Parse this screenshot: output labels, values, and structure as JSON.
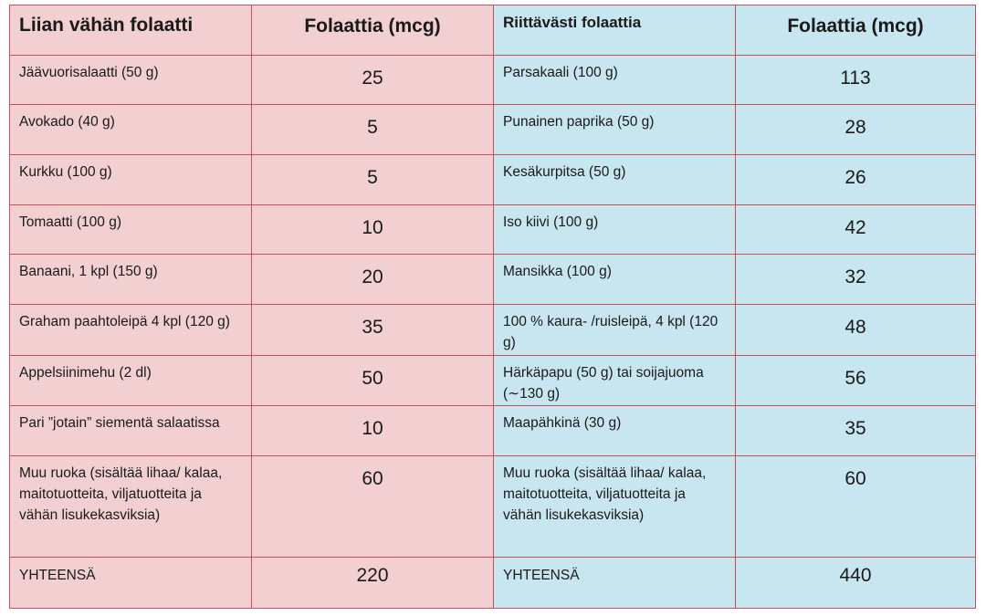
{
  "left": {
    "header": "Liian vähän folaatti",
    "value_header": "Folaattia (mcg)",
    "rows": [
      {
        "food": "Jäävuorisalaatti (50 g)",
        "value": "25"
      },
      {
        "food": "Avokado (40 g)",
        "value": "5"
      },
      {
        "food": "Kurkku (100 g)",
        "value": "5"
      },
      {
        "food": "Tomaatti (100 g)",
        "value": "10"
      },
      {
        "food": "Banaani, 1 kpl (150 g)",
        "value": "20"
      },
      {
        "food": "Graham paahtoleipä 4 kpl (120 g)",
        "value": "35"
      },
      {
        "food": "Appelsiinimehu (2 dl)",
        "value": "50"
      },
      {
        "food": "Pari ”jotain” siementä salaatissa",
        "value": "10"
      },
      {
        "food": "Muu ruoka (sisältää lihaa/ kalaa, maitotuotteita, viljatuotteita ja vähän lisukekasviksia)",
        "value": "60"
      }
    ],
    "total_label": "YHTEENSÄ",
    "total_value": "220"
  },
  "right": {
    "header": "Riittävästi folaattia",
    "value_header": "Folaattia (mcg)",
    "rows": [
      {
        "food": "Parsakaali (100 g)",
        "value": "113"
      },
      {
        "food": "Punainen paprika (50 g)",
        "value": "28"
      },
      {
        "food": "Kesäkurpitsa (50 g)",
        "value": "26"
      },
      {
        "food": "Iso kiivi (100 g)",
        "value": "42"
      },
      {
        "food": "Mansikka (100 g)",
        "value": "32"
      },
      {
        "food": "100 % kaura- /ruisleipä, 4 kpl (120 g)",
        "value": "48"
      },
      {
        "food": "Härkäpapu (50 g) tai soijajuoma (∼130 g)",
        "value": "56"
      },
      {
        "food": "Maapähkinä (30 g)",
        "value": "35"
      },
      {
        "food": "Muu ruoka (sisältää lihaa/ kalaa, maitotuotteita, viljatuotteita ja vähän lisukekasviksia)",
        "value": "60"
      }
    ],
    "total_label": "YHTEENSÄ",
    "total_value": "440"
  },
  "colors": {
    "left_background": "#f2cfd0",
    "right_background": "#c7e6ef",
    "border": "#c8505a"
  }
}
